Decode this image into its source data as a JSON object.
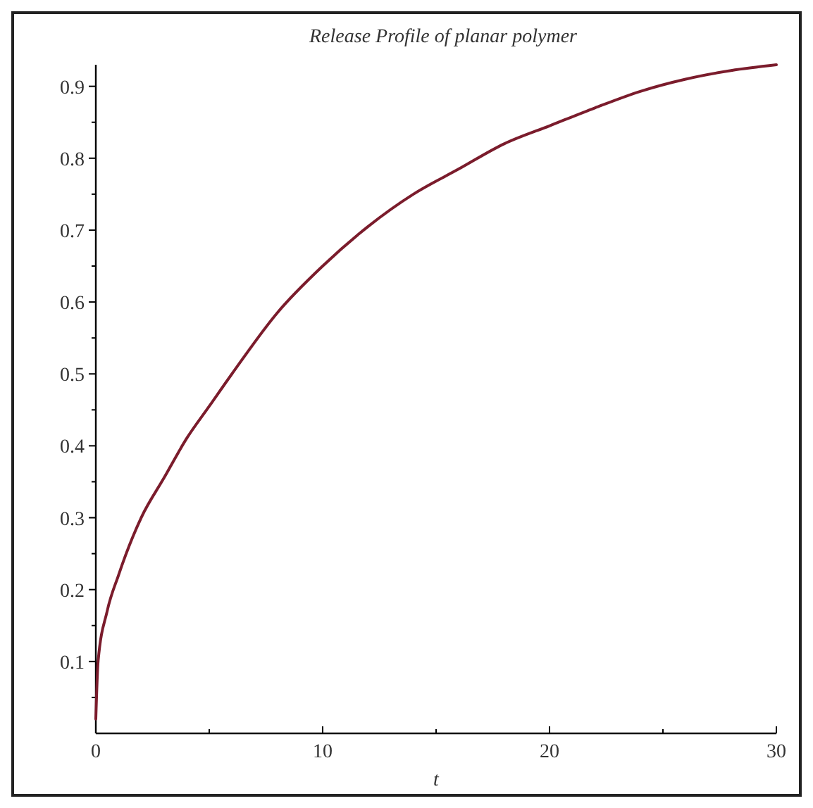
{
  "chart_data": {
    "type": "line",
    "title": "Release Profile of planar polymer",
    "xlabel": "t",
    "x": [
      0,
      0.1,
      0.5,
      1,
      2,
      3,
      4,
      5,
      6,
      8,
      10,
      12,
      14,
      16,
      18,
      20,
      22,
      24,
      26,
      28,
      30
    ],
    "series": [
      {
        "color": "#7b1c2c",
        "values": [
          0.02,
          0.1,
          0.17,
          0.22,
          0.3,
          0.355,
          0.41,
          0.455,
          0.5,
          0.585,
          0.65,
          0.705,
          0.75,
          0.785,
          0.82,
          0.845,
          0.87,
          0.893,
          0.91,
          0.922,
          0.93
        ]
      }
    ],
    "xlim": [
      0,
      30
    ],
    "xticks": [
      0,
      {
        "value": 5,
        "label": null
      },
      10,
      {
        "value": 15,
        "label": null
      },
      20,
      {
        "value": 25,
        "label": null
      },
      30
    ],
    "ylim": [
      0,
      0.93
    ],
    "yticks": [
      {
        "value": 0.05,
        "label": null
      },
      0.1,
      {
        "value": 0.15,
        "label": null
      },
      0.2,
      {
        "value": 0.25,
        "label": null
      },
      0.3,
      {
        "value": 0.35,
        "label": null
      },
      0.4,
      {
        "value": 0.45,
        "label": null
      },
      0.5,
      {
        "value": 0.55,
        "label": null
      },
      0.6,
      {
        "value": 0.65,
        "label": null
      },
      0.7,
      {
        "value": 0.75,
        "label": null
      },
      0.8,
      {
        "value": 0.85,
        "label": null
      },
      0.9
    ],
    "grid": false,
    "marker": "none",
    "line_style": "solid"
  }
}
